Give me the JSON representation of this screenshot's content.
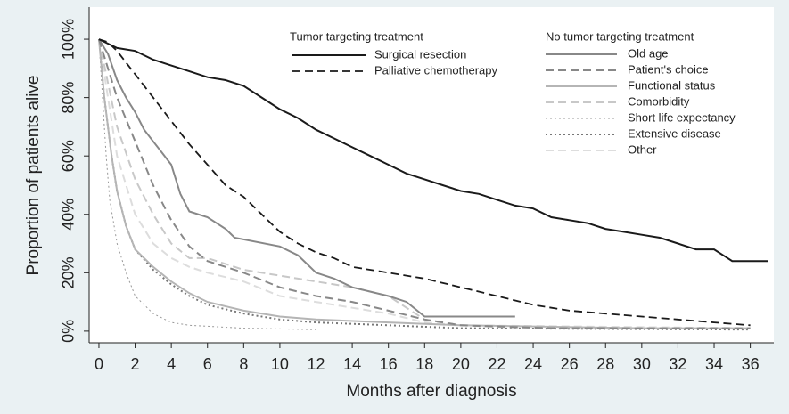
{
  "chart_data": {
    "type": "line",
    "x_title": "Months after diagnosis",
    "y_title": "Proportion of patients alive",
    "xlim": [
      -0.54,
      37.3
    ],
    "ylim": [
      -4,
      111
    ],
    "xticks": [
      0,
      2,
      4,
      6,
      8,
      10,
      12,
      14,
      16,
      18,
      20,
      22,
      24,
      26,
      28,
      30,
      32,
      34,
      36
    ],
    "yticks": [
      {
        "value": 0,
        "label": "0%"
      },
      {
        "value": 20,
        "label": "20%"
      },
      {
        "value": 40,
        "label": "40%"
      },
      {
        "value": 60,
        "label": "60%"
      },
      {
        "value": 80,
        "label": "80%"
      },
      {
        "value": 100,
        "label": "100%"
      }
    ],
    "legend_titles": [
      "Tumor targeting treatment",
      "No tumor targeting treatment"
    ],
    "series": [
      {
        "name": "Surgical resection",
        "color": "#1a1a1a",
        "dash": "solid",
        "width": 2,
        "x": [
          0,
          1,
          2,
          3,
          4,
          5,
          6,
          7,
          8,
          9,
          10,
          11,
          12,
          13,
          14,
          15,
          16,
          17,
          18,
          19,
          20,
          21,
          22,
          23,
          24,
          25,
          26,
          27,
          28,
          29,
          30,
          31,
          32,
          33,
          34,
          34.5,
          35,
          37
        ],
        "values": [
          100,
          97,
          96,
          93,
          91,
          89,
          87,
          86,
          84,
          80,
          76,
          73,
          69,
          66,
          63,
          60,
          57,
          54,
          52,
          50,
          48,
          47,
          45,
          43,
          42,
          39,
          38,
          37,
          35,
          34,
          33,
          32,
          30,
          28,
          28,
          26,
          24,
          24
        ]
      },
      {
        "name": "Palliative chemotherapy",
        "color": "#1a1a1a",
        "dash": "dashed",
        "width": 1.8,
        "x": [
          0,
          0.5,
          1,
          2,
          3,
          4,
          5,
          6,
          7,
          8,
          9,
          10,
          11,
          12,
          13,
          14,
          16,
          18,
          20,
          22,
          24,
          26,
          28,
          30,
          32,
          34,
          36
        ],
        "values": [
          100,
          99,
          96,
          88,
          80,
          72,
          64,
          57,
          50,
          46,
          40,
          34,
          30,
          27,
          25,
          22,
          20,
          18,
          15,
          12,
          9,
          7,
          6,
          5,
          4,
          3,
          2
        ]
      },
      {
        "name": "Old age",
        "color": "#888888",
        "dash": "solid",
        "width": 2,
        "x": [
          0,
          0.5,
          1,
          1.5,
          2,
          2.5,
          3,
          3.5,
          4,
          4.5,
          5,
          6,
          7,
          7.5,
          10,
          11,
          11.5,
          12,
          13,
          14,
          16,
          17,
          18,
          23
        ],
        "values": [
          100,
          95,
          86,
          80,
          75,
          69,
          65,
          61,
          57,
          47,
          41,
          39,
          35,
          32,
          29,
          26,
          23,
          20,
          18,
          15,
          12,
          10,
          5,
          5
        ]
      },
      {
        "name": "Patient's choice",
        "color": "#888888",
        "dash": "dashed",
        "width": 2,
        "x": [
          0,
          0.5,
          1,
          2,
          3,
          4,
          5,
          6,
          8,
          10,
          12,
          14,
          16,
          18,
          20,
          25,
          36
        ],
        "values": [
          100,
          90,
          80,
          65,
          50,
          38,
          29,
          24,
          20,
          15,
          12,
          10,
          7,
          4,
          2,
          1,
          1
        ]
      },
      {
        "name": "Functional status",
        "color": "#b5b5b5",
        "dash": "solid",
        "width": 2,
        "x": [
          0,
          0.3,
          0.7,
          1,
          1.5,
          2,
          3,
          4,
          5,
          6,
          8,
          10,
          12,
          16,
          20,
          30,
          36
        ],
        "values": [
          100,
          80,
          60,
          48,
          36,
          28,
          22,
          17,
          13,
          10,
          7,
          5,
          4,
          3,
          2,
          1,
          1
        ]
      },
      {
        "name": "Comorbidity",
        "color": "#c8c8c8",
        "dash": "dashed",
        "width": 2,
        "x": [
          0,
          0.5,
          1,
          2,
          3,
          4,
          5,
          6,
          8,
          10,
          12,
          14,
          16,
          17,
          18,
          20,
          24,
          36
        ],
        "values": [
          100,
          85,
          70,
          52,
          40,
          30,
          25,
          25,
          21,
          19,
          17,
          15,
          12,
          8,
          4,
          2,
          1,
          1
        ]
      },
      {
        "name": "Short life expectancy",
        "color": "#999999",
        "dash": "dotted",
        "width": 1,
        "x": [
          0,
          0.2,
          0.4,
          0.6,
          1,
          1.5,
          2,
          3,
          4,
          5,
          8,
          12
        ],
        "values": [
          100,
          80,
          60,
          45,
          30,
          20,
          12,
          6,
          3,
          2,
          1,
          0.5
        ]
      },
      {
        "name": "Extensive disease",
        "color": "#777777",
        "dash": "dotted",
        "width": 2,
        "x": [
          0,
          0.3,
          0.7,
          1,
          1.5,
          2,
          3,
          4,
          5,
          6,
          8,
          10,
          12,
          16,
          20,
          36
        ],
        "values": [
          100,
          80,
          60,
          48,
          36,
          28,
          21,
          16,
          12,
          9,
          6,
          4,
          3,
          2,
          1,
          0.5
        ]
      },
      {
        "name": "Other",
        "color": "#dddddd",
        "dash": "dashed",
        "width": 2,
        "x": [
          0,
          0.5,
          1,
          2,
          3,
          4,
          5,
          6,
          8,
          10,
          12,
          14,
          16,
          18,
          20,
          36
        ],
        "values": [
          100,
          80,
          60,
          40,
          30,
          25,
          22,
          20,
          17,
          12,
          10,
          8,
          6,
          3,
          2,
          1
        ]
      }
    ]
  }
}
